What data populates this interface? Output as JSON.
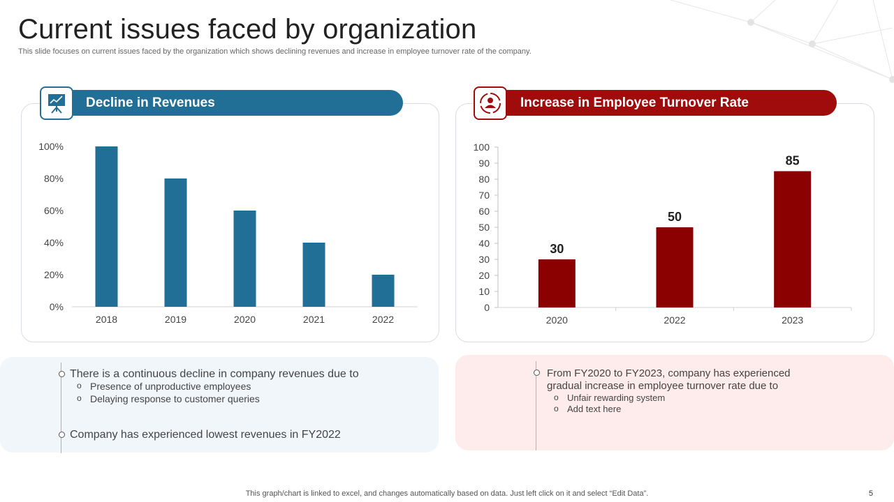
{
  "header": {
    "title": "Current issues faced by organization",
    "subtitle": "This slide focuses on current issues faced by the organization which shows declining revenues and increase in employee turnover rate of the company."
  },
  "left_card": {
    "heading": "Decline in Revenues",
    "icon": "presentation-board-icon",
    "color": "#216e97"
  },
  "right_card": {
    "heading": "Increase in Employee Turnover Rate",
    "icon": "person-cycle-icon",
    "color": "#a00c0c"
  },
  "chart_data": [
    {
      "type": "bar",
      "title": "Decline in Revenues",
      "categories": [
        "2018",
        "2019",
        "2020",
        "2021",
        "2022"
      ],
      "values": [
        100,
        80,
        60,
        40,
        20
      ],
      "ylim": [
        0,
        100
      ],
      "yticks": [
        "0%",
        "20%",
        "40%",
        "60%",
        "80%",
        "100%"
      ],
      "xlabel": "",
      "ylabel": "",
      "color": "#216e97",
      "data_labels": false
    },
    {
      "type": "bar",
      "title": "Increase in Employee Turnover Rate",
      "categories": [
        "2020",
        "2022",
        "2023"
      ],
      "values": [
        30,
        50,
        85
      ],
      "ylim": [
        0,
        100
      ],
      "yticks": [
        "0",
        "10",
        "20",
        "30",
        "40",
        "50",
        "60",
        "70",
        "80",
        "90",
        "100"
      ],
      "xlabel": "",
      "ylabel": "",
      "color": "#8b0000",
      "data_labels": true
    }
  ],
  "left_notes": {
    "point1": "There is a continuous  decline in company revenues  due to",
    "sub1": "Presence of unproductive employees",
    "sub2": "Delaying response to customer queries",
    "point2": "Company has experienced lowest revenues  in FY2022"
  },
  "right_notes": {
    "point1_line1": "From FY2020 to FY2023, company has experienced",
    "point1_line2": "gradual increase in employee turnover rate due to",
    "sub1": "Unfair  rewarding  system",
    "sub2": "Add text here"
  },
  "footer": {
    "note": "This graph/chart is linked to excel,  and changes automatically based on data. Just left click on it and select “Edit Data”.",
    "page_number": "5"
  }
}
